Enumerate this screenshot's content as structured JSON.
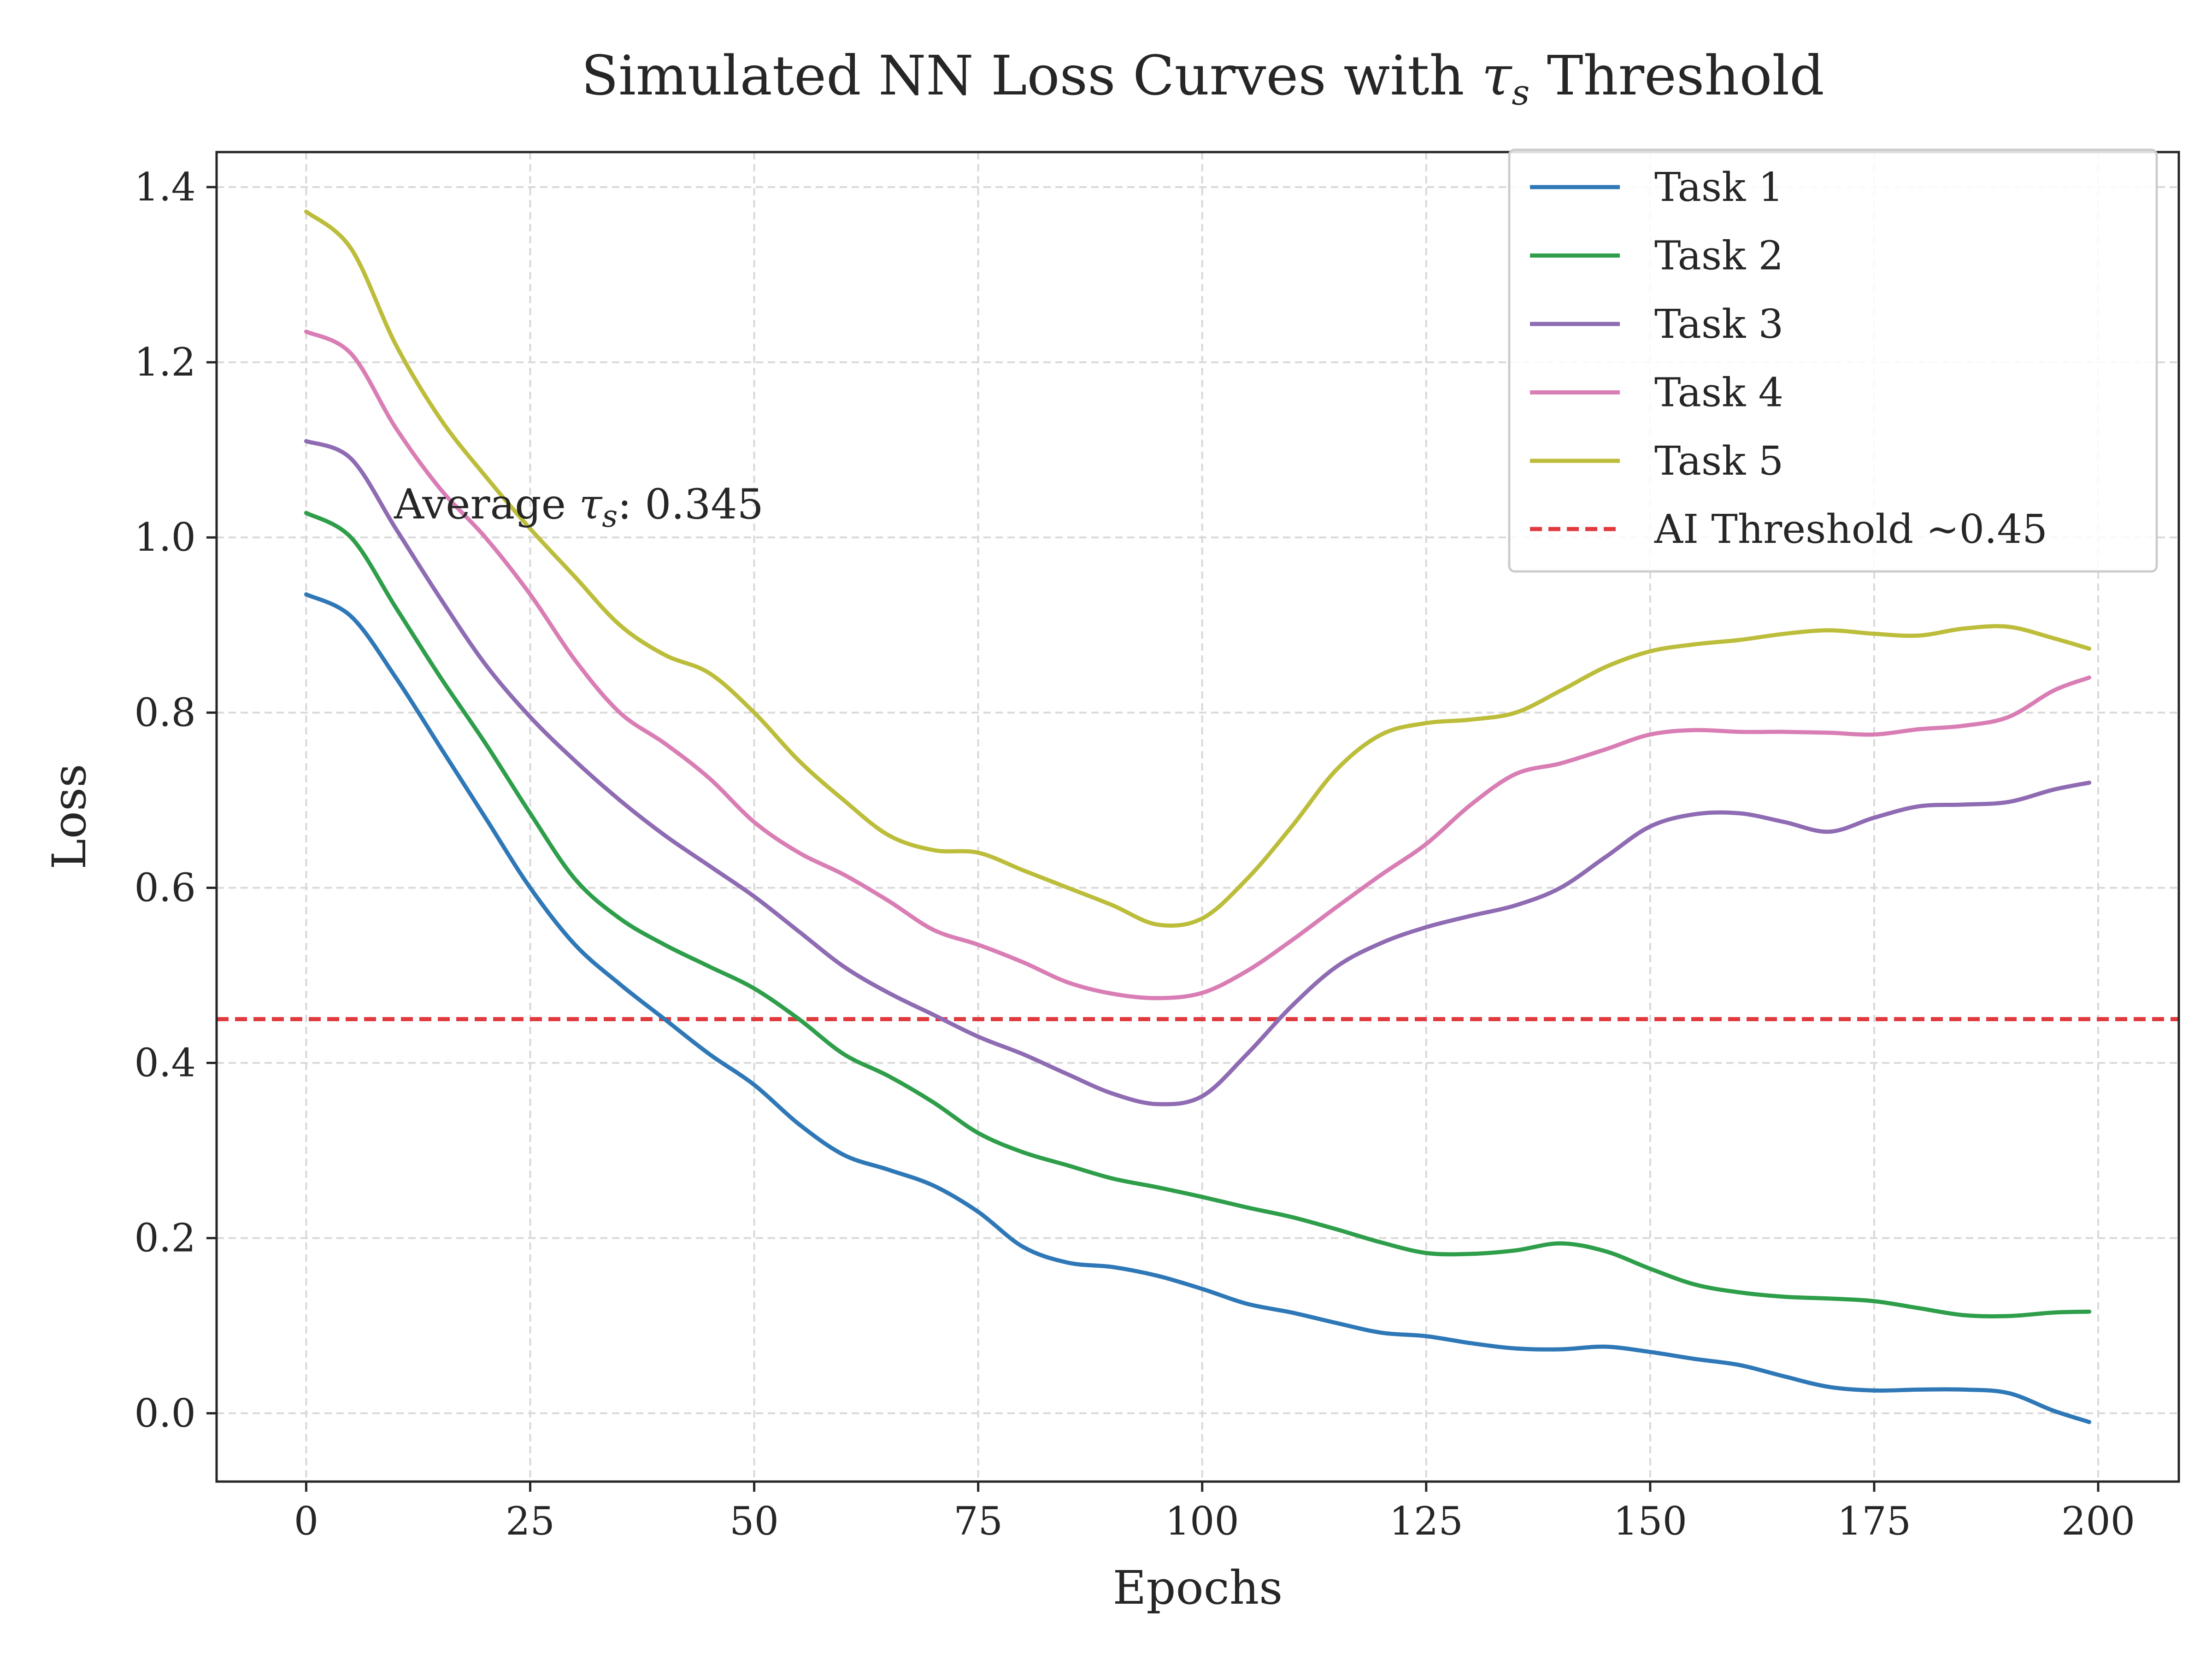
{
  "chart_data": {
    "type": "line",
    "title_main": "Simulated NN Loss Curves with ",
    "title_symbol": "τ",
    "title_sub": "s",
    "title_end": " Threshold",
    "xlabel": "Epochs",
    "ylabel": "Loss",
    "xlim": [
      -10,
      209
    ],
    "ylim": [
      -0.078,
      1.44
    ],
    "xticks": [
      0,
      25,
      50,
      75,
      100,
      125,
      150,
      175,
      200
    ],
    "xtick_labels": [
      "0",
      "25",
      "50",
      "75",
      "100",
      "125",
      "150",
      "175",
      "200"
    ],
    "yticks": [
      0.0,
      0.2,
      0.4,
      0.6,
      0.8,
      1.0,
      1.2,
      1.4
    ],
    "ytick_labels": [
      "0.0",
      "0.2",
      "0.4",
      "0.6",
      "0.8",
      "1.0",
      "1.2",
      "1.4"
    ],
    "grid": true,
    "legend_position": "top-right",
    "annotation": {
      "prefix": "Average ",
      "symbol": "τ",
      "sub": "s",
      "suffix": ": 0.345",
      "x": 10,
      "y": 1.0
    },
    "threshold": {
      "name": "AI Threshold ",
      "name_suffix": "~0.45",
      "value": 0.45,
      "color": "#e03a3e"
    },
    "x": [
      0,
      5,
      10,
      15,
      20,
      25,
      30,
      35,
      40,
      45,
      50,
      55,
      60,
      65,
      70,
      75,
      80,
      85,
      90,
      95,
      100,
      105,
      110,
      115,
      120,
      125,
      130,
      135,
      140,
      145,
      150,
      155,
      160,
      165,
      170,
      175,
      180,
      185,
      190,
      195,
      199
    ],
    "series": [
      {
        "name": "Task 1",
        "color": "#2f78b7",
        "values": [
          0.935,
          0.91,
          0.84,
          0.76,
          0.68,
          0.6,
          0.535,
          0.49,
          0.45,
          0.41,
          0.375,
          0.33,
          0.295,
          0.278,
          0.26,
          0.23,
          0.19,
          0.172,
          0.167,
          0.157,
          0.142,
          0.125,
          0.115,
          0.103,
          0.092,
          0.088,
          0.08,
          0.074,
          0.073,
          0.076,
          0.07,
          0.062,
          0.055,
          0.042,
          0.03,
          0.026,
          0.027,
          0.027,
          0.023,
          0.003,
          -0.01
        ]
      },
      {
        "name": "Task 2",
        "color": "#2e9e4a",
        "values": [
          1.028,
          1.0,
          0.92,
          0.84,
          0.765,
          0.685,
          0.61,
          0.565,
          0.535,
          0.51,
          0.485,
          0.45,
          0.41,
          0.385,
          0.355,
          0.32,
          0.298,
          0.283,
          0.268,
          0.258,
          0.247,
          0.235,
          0.224,
          0.21,
          0.195,
          0.183,
          0.182,
          0.186,
          0.194,
          0.185,
          0.165,
          0.147,
          0.138,
          0.133,
          0.131,
          0.128,
          0.12,
          0.112,
          0.111,
          0.115,
          0.116
        ]
      },
      {
        "name": "Task 3",
        "color": "#8e6bb2",
        "values": [
          1.11,
          1.09,
          1.01,
          0.93,
          0.855,
          0.795,
          0.745,
          0.7,
          0.66,
          0.625,
          0.59,
          0.55,
          0.51,
          0.48,
          0.455,
          0.43,
          0.41,
          0.387,
          0.365,
          0.353,
          0.362,
          0.41,
          0.465,
          0.51,
          0.537,
          0.555,
          0.568,
          0.58,
          0.6,
          0.635,
          0.67,
          0.684,
          0.685,
          0.675,
          0.664,
          0.68,
          0.693,
          0.695,
          0.698,
          0.712,
          0.72
        ]
      },
      {
        "name": "Task 4",
        "color": "#d97eb5",
        "values": [
          1.235,
          1.21,
          1.125,
          1.055,
          1.0,
          0.935,
          0.86,
          0.8,
          0.765,
          0.725,
          0.675,
          0.64,
          0.615,
          0.585,
          0.552,
          0.535,
          0.515,
          0.492,
          0.479,
          0.474,
          0.48,
          0.505,
          0.54,
          0.578,
          0.615,
          0.65,
          0.695,
          0.73,
          0.742,
          0.758,
          0.775,
          0.78,
          0.778,
          0.778,
          0.777,
          0.775,
          0.781,
          0.785,
          0.795,
          0.825,
          0.84
        ]
      },
      {
        "name": "Task 5",
        "color": "#bcbd3a",
        "values": [
          1.372,
          1.33,
          1.22,
          1.135,
          1.07,
          1.01,
          0.955,
          0.9,
          0.866,
          0.845,
          0.8,
          0.745,
          0.7,
          0.66,
          0.643,
          0.64,
          0.62,
          0.6,
          0.58,
          0.558,
          0.565,
          0.61,
          0.67,
          0.735,
          0.775,
          0.788,
          0.792,
          0.8,
          0.825,
          0.852,
          0.87,
          0.878,
          0.883,
          0.89,
          0.894,
          0.89,
          0.888,
          0.896,
          0.898,
          0.885,
          0.873
        ]
      }
    ]
  }
}
